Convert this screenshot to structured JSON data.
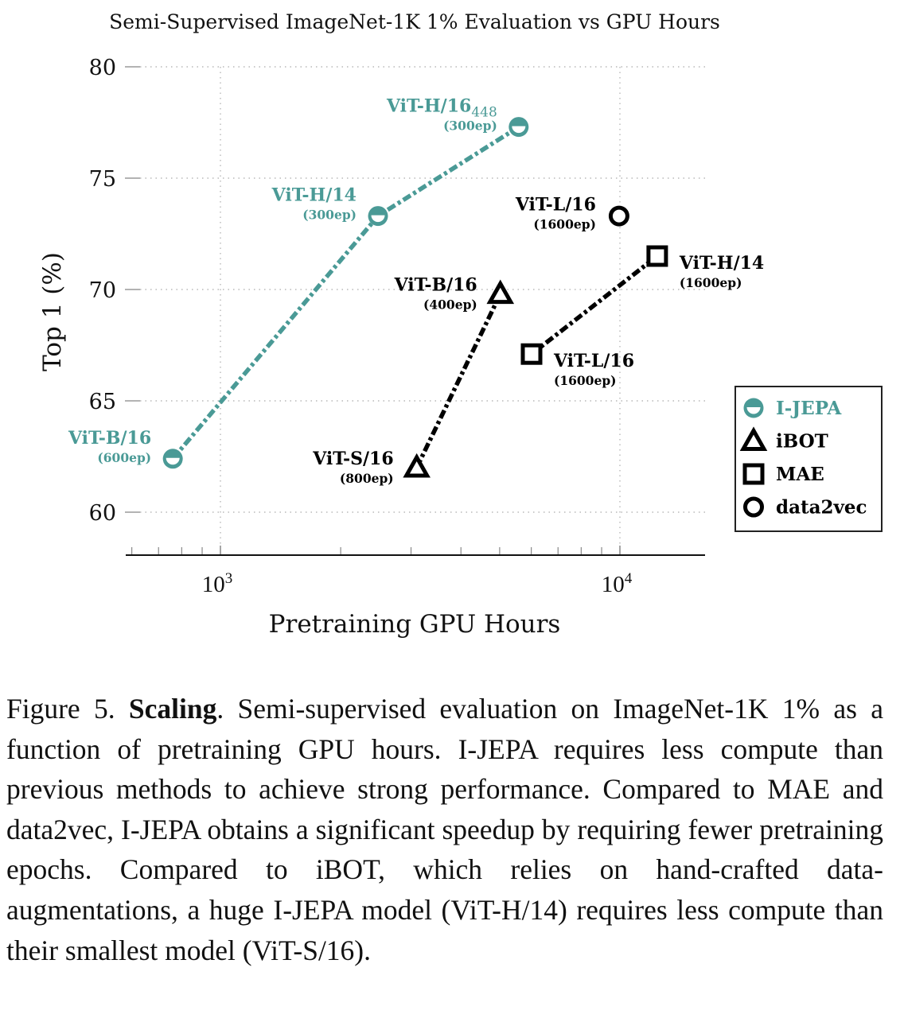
{
  "chart_data": {
    "type": "scatter",
    "title": "Semi-Supervised ImageNet-1K 1% Evaluation vs GPU Hours",
    "xlabel": "Pretraining GPU Hours",
    "ylabel": "Top 1 (%)",
    "xscale": "log",
    "xlim": [
      580,
      16250
    ],
    "ylim": [
      58,
      80
    ],
    "xticks": [
      {
        "value": 1000,
        "label": "10",
        "exp": "3"
      },
      {
        "value": 10000,
        "label": "10",
        "exp": "4"
      }
    ],
    "xminor_ticks": [
      600,
      700,
      800,
      900,
      2000,
      3000,
      4000,
      5000,
      6000,
      7000,
      8000,
      9000
    ],
    "yticks": [
      60,
      65,
      70,
      75,
      80
    ],
    "yticklabels": [
      "60",
      "65",
      "70",
      "75",
      "80"
    ],
    "grid": true,
    "legend_position": "right",
    "series": [
      {
        "name": "I-JEPA",
        "marker": "half-circle",
        "color": "#4a9a96",
        "connected": true,
        "points": [
          {
            "x": 760,
            "y": 62.4,
            "label": "ViT-B/16",
            "sub": "",
            "epochs": "(600ep)"
          },
          {
            "x": 2480,
            "y": 73.3,
            "label": "ViT-H/14",
            "sub": "",
            "epochs": "(300ep)"
          },
          {
            "x": 5580,
            "y": 77.3,
            "label": "ViT-H/16",
            "sub": "448",
            "epochs": "(300ep)"
          }
        ]
      },
      {
        "name": "iBOT",
        "marker": "triangle",
        "color": "#000000",
        "connected": true,
        "points": [
          {
            "x": 3100,
            "y": 62.0,
            "label": "ViT-S/16",
            "sub": "",
            "epochs": "(800ep)"
          },
          {
            "x": 5020,
            "y": 69.8,
            "label": "ViT-B/16",
            "sub": "",
            "epochs": "(400ep)"
          }
        ]
      },
      {
        "name": "MAE",
        "marker": "square",
        "color": "#000000",
        "connected": true,
        "points": [
          {
            "x": 6010,
            "y": 67.1,
            "label": "ViT-L/16",
            "sub": "",
            "epochs": "(1600ep)"
          },
          {
            "x": 12400,
            "y": 71.5,
            "label": "ViT-H/14",
            "sub": "",
            "epochs": "(1600ep)"
          }
        ]
      },
      {
        "name": "data2vec",
        "marker": "circle",
        "color": "#000000",
        "connected": false,
        "points": [
          {
            "x": 9950,
            "y": 73.3,
            "label": "ViT-L/16",
            "sub": "",
            "epochs": "(1600ep)"
          }
        ]
      }
    ]
  },
  "caption": {
    "figure": "Figure 5.",
    "bold": "Scaling",
    "text": ". Semi-supervised evaluation on ImageNet-1K 1% as a function of pretraining GPU hours. I-JEPA requires less compute than previous methods to achieve strong performance. Compared to MAE and data2vec, I-JEPA obtains a significant speedup by requiring fewer pretraining epochs. Compared to iBOT, which relies on hand-crafted data-augmentations, a huge I-JEPA model (ViT-H/14) requires less compute than their smallest model (ViT-S/16)."
  }
}
